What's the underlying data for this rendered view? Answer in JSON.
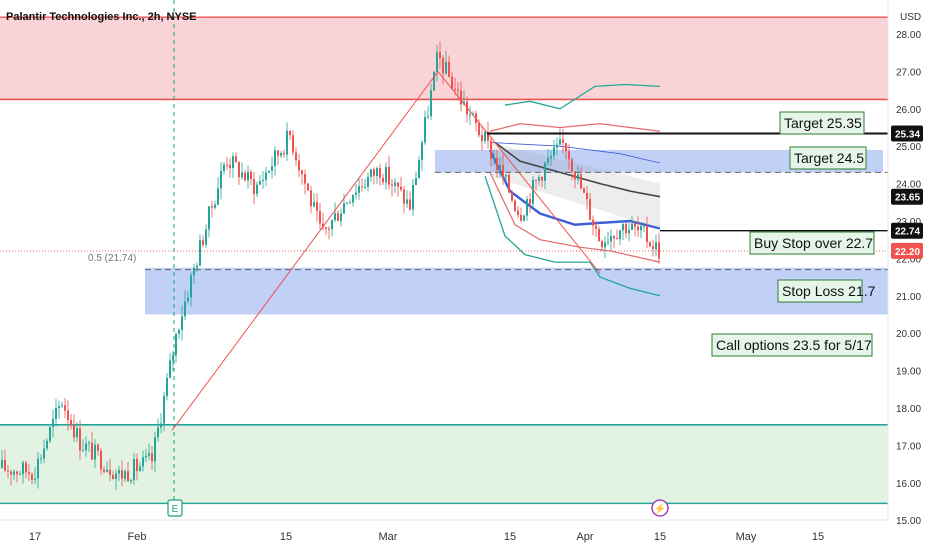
{
  "header": {
    "symbol_title": "Palantir Technologies Inc., 2h, NYSE",
    "currency_label": "USD"
  },
  "colors": {
    "up": "#26a69a",
    "down": "#ef5350",
    "resistance_zone": "#f9d3d6",
    "support_zone": "#e2f3e4",
    "blue_zone": "#b9cbf6",
    "sma_line": "#3d5fd9",
    "mid_line": "#333333",
    "envelope_upper": "#e36a6a",
    "envelope_outer": "#1f9e78"
  },
  "chart_data": {
    "type": "candlestick",
    "title": "Palantir Technologies Inc., 2h, NYSE",
    "ylabel": "USD",
    "ylim": [
      15,
      28.4
    ],
    "y_ticks": [
      "28.00",
      "27.00",
      "26.00",
      "25.00",
      "24.00",
      "23.00",
      "22.00",
      "21.00",
      "20.00",
      "19.00",
      "18.00",
      "17.00",
      "16.00",
      "15.00"
    ],
    "x_ticks": [
      "17",
      "Feb",
      "15",
      "Mar",
      "15",
      "Apr",
      "15",
      "May",
      "15"
    ],
    "price_path": [
      {
        "x": "Jan 12",
        "close": 16.4
      },
      {
        "x": "Jan 17",
        "close": 16.3
      },
      {
        "x": "Jan 22",
        "close": 18.2
      },
      {
        "x": "Jan 24",
        "close": 17.1
      },
      {
        "x": "Jan 30",
        "close": 16.2
      },
      {
        "x": "Feb 2",
        "close": 16.6
      },
      {
        "x": "Feb 5",
        "close": 20.2
      },
      {
        "x": "Feb 8",
        "close": 22.3
      },
      {
        "x": "Feb 12",
        "close": 24.7
      },
      {
        "x": "Feb 16",
        "close": 23.9
      },
      {
        "x": "Feb 20",
        "close": 25.3
      },
      {
        "x": "Feb 24",
        "close": 22.6
      },
      {
        "x": "Feb 28",
        "close": 23.8
      },
      {
        "x": "Mar 3",
        "close": 24.4
      },
      {
        "x": "Mar 5",
        "close": 23.4
      },
      {
        "x": "Mar 8",
        "close": 27.4
      },
      {
        "x": "Mar 12",
        "close": 26.2
      },
      {
        "x": "Mar 15",
        "close": 24.9
      },
      {
        "x": "Mar 19",
        "close": 23.2
      },
      {
        "x": "Mar 23",
        "close": 24.5
      },
      {
        "x": "Mar 26",
        "close": 25.1
      },
      {
        "x": "Mar 28",
        "close": 23.8
      },
      {
        "x": "Apr 2",
        "close": 22.5
      },
      {
        "x": "Apr 8",
        "close": 22.9
      },
      {
        "x": "Apr 12",
        "close": 22.6
      },
      {
        "x": "Apr 15",
        "close": 22.2
      }
    ],
    "horizontal_levels": [
      {
        "name": "Target 25.35",
        "value": 25.34
      },
      {
        "name": "Target 24.5",
        "value": 24.5
      },
      {
        "name": "Buy Stop over 22.7",
        "value": 22.74
      },
      {
        "name": "Stop Loss 21.7",
        "value": 21.7
      }
    ],
    "zones": [
      {
        "name": "resistance",
        "from": 26.25,
        "to": 28.45
      },
      {
        "name": "support",
        "from": 15.45,
        "to": 17.55
      },
      {
        "name": "stop",
        "from": 20.5,
        "to": 21.75
      },
      {
        "name": "target",
        "from": 24.3,
        "to": 24.9
      }
    ],
    "fib_labels": [
      "0.5 (21.74)"
    ],
    "price_labels": [
      {
        "value": "25.34",
        "style": "black"
      },
      {
        "value": "23.65",
        "style": "black"
      },
      {
        "value": "22.74",
        "style": "black"
      },
      {
        "value": "22.20",
        "style": "red"
      }
    ],
    "annotations": [
      "Target 25.35",
      "Target 24.5",
      "Buy Stop over 22.7",
      "Stop Loss 21.7",
      "Call options 23.5 for 5/17"
    ],
    "event_markers": [
      "E",
      "⚡"
    ]
  }
}
